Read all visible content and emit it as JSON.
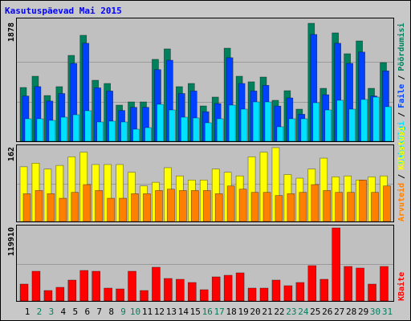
{
  "title": "Kasutuspäevad Mai 2015",
  "legend_separator": "/",
  "chart_data": [
    {
      "type": "bar",
      "ylim": [
        0,
        1878
      ],
      "yticks": [
        1878
      ],
      "series": [
        {
          "name": "Pöördumisi",
          "color": "#00805c",
          "values": [
            856,
            1035,
            728,
            869,
            1367,
            1687,
            971,
            920,
            575,
            626,
            626,
            1304,
            1470,
            869,
            920,
            562,
            703,
            1482,
            1035,
            946,
            1022,
            652,
            805,
            511,
            1878,
            843,
            1725,
            1393,
            1597,
            843,
            1252
          ]
        },
        {
          "name": "Faile",
          "color": "#0040ff",
          "values": [
            720,
            870,
            640,
            760,
            1240,
            1560,
            850,
            800,
            490,
            540,
            540,
            1140,
            1290,
            760,
            800,
            470,
            600,
            1330,
            920,
            800,
            890,
            560,
            690,
            430,
            1700,
            740,
            1560,
            1240,
            1420,
            720,
            1120
          ]
        },
        {
          "name": "Lehekülgi",
          "color": "#00e0ff",
          "values": [
            358,
            358,
            332,
            383,
            422,
            486,
            307,
            320,
            307,
            192,
            217,
            588,
            498,
            383,
            371,
            294,
            358,
            575,
            511,
            626,
            626,
            230,
            358,
            358,
            613,
            498,
            652,
            511,
            665,
            703,
            550
          ]
        }
      ]
    },
    {
      "type": "bar",
      "ylim": [
        0,
        162
      ],
      "yticks": [
        162
      ],
      "series": [
        {
          "name": "Külastusi",
          "color": "#ffff00",
          "values": [
            120,
            128,
            115,
            123,
            142,
            152,
            125,
            125,
            125,
            108,
            78,
            86,
            118,
            100,
            91,
            91,
            115,
            108,
            100,
            142,
            152,
            162,
            103,
            95,
            115,
            139,
            98,
            100,
            91,
            98,
            100
          ]
        },
        {
          "name": "Arvuteid",
          "color": "#ff8000",
          "values": [
            61,
            68,
            61,
            51,
            64,
            81,
            68,
            51,
            51,
            61,
            61,
            68,
            71,
            68,
            68,
            68,
            61,
            78,
            71,
            64,
            64,
            57,
            61,
            64,
            81,
            68,
            64,
            64,
            91,
            64,
            78
          ]
        }
      ]
    },
    {
      "type": "bar",
      "ylim": [
        0,
        119910
      ],
      "yticks": [
        119910
      ],
      "categories": [
        "1",
        "2",
        "3",
        "4",
        "5",
        "6",
        "7",
        "8",
        "9",
        "10",
        "11",
        "12",
        "13",
        "14",
        "15",
        "16",
        "17",
        "18",
        "19",
        "20",
        "21",
        "22",
        "23",
        "24",
        "25",
        "26",
        "27",
        "28",
        "29",
        "30",
        "31"
      ],
      "category_colors": [
        "#000000",
        "#00805c",
        "#00805c",
        "#000000",
        "#000000",
        "#000000",
        "#000000",
        "#000000",
        "#00805c",
        "#00805c",
        "#000000",
        "#000000",
        "#000000",
        "#000000",
        "#000000",
        "#00805c",
        "#00805c",
        "#000000",
        "#000000",
        "#000000",
        "#000000",
        "#000000",
        "#00805c",
        "#00805c",
        "#000000",
        "#000000",
        "#000000",
        "#000000",
        "#000000",
        "#00805c",
        "#00805c"
      ],
      "series": [
        {
          "name": "KBaite",
          "color": "#ff0000",
          "values": [
            27678,
            48766,
            17134,
            22406,
            34268,
            50084,
            48766,
            21088,
            19770,
            48766,
            17134,
            55356,
            36904,
            35586,
            30314,
            18452,
            39540,
            42176,
            46130,
            21088,
            21088,
            34268,
            25042,
            30314,
            57992,
            35586,
            119910,
            56674,
            54038,
            27678,
            56674
          ]
        }
      ]
    }
  ]
}
